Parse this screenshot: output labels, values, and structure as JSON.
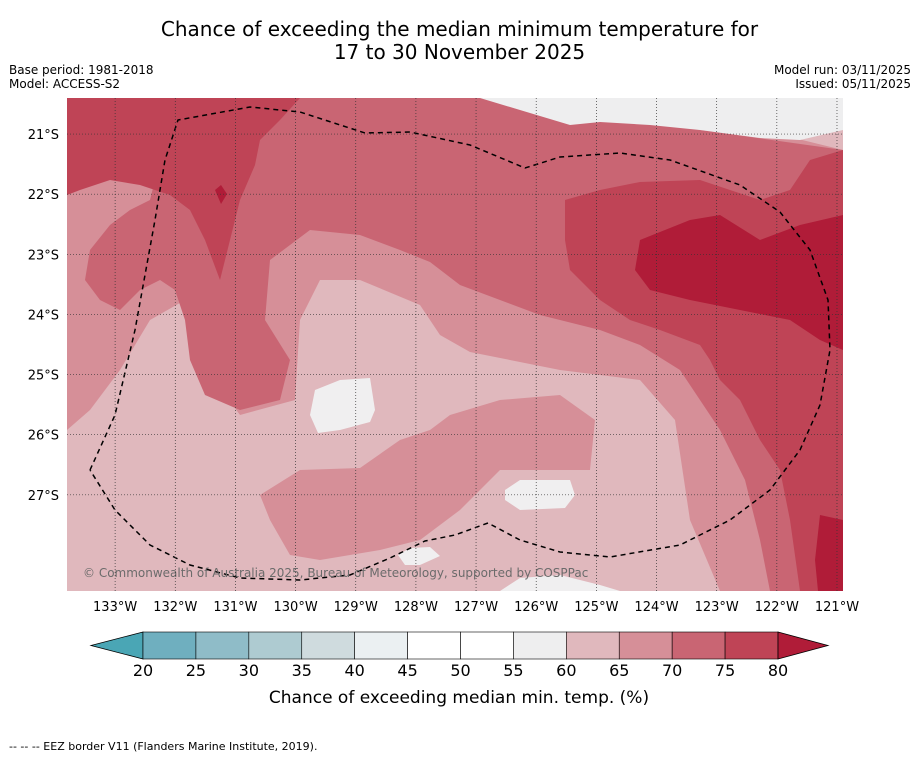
{
  "header": {
    "title_line1": "Chance of exceeding the median minimum temperature for",
    "title_line2": "17 to 30 November 2025",
    "base_period": "Base period: 1981-2018",
    "model": "Model: ACCESS-S2",
    "model_run": "Model run: 03/11/2025",
    "issued": "Issued: 05/11/2025"
  },
  "chart_data": {
    "type": "heatmap",
    "title": "Chance of exceeding the median minimum temperature for 17 to 30 November 2025",
    "x_ticks": [
      "133°W",
      "132°W",
      "131°W",
      "130°W",
      "129°W",
      "128°W",
      "127°W",
      "126°W",
      "125°W",
      "124°W",
      "123°W",
      "122°W",
      "121°W"
    ],
    "x_values": [
      -133,
      -132,
      -131,
      -130,
      -129,
      -128,
      -127,
      -126,
      -125,
      -124,
      -123,
      -122,
      -121
    ],
    "y_ticks": [
      "21°S",
      "22°S",
      "23°S",
      "24°S",
      "25°S",
      "26°S",
      "27°S"
    ],
    "y_values": [
      -21,
      -22,
      -23,
      -24,
      -25,
      -26,
      -27
    ],
    "xlim": [
      -133.8,
      -120.9
    ],
    "ylim": [
      -28.6,
      -20.4
    ],
    "colorbar": {
      "label": "Chance of exceeding median min. temp. (%)",
      "tick_labels": [
        "20",
        "25",
        "30",
        "35",
        "40",
        "45",
        "50",
        "55",
        "60",
        "65",
        "70",
        "75",
        "80"
      ],
      "levels": [
        20,
        25,
        30,
        35,
        40,
        45,
        50,
        55,
        60,
        65,
        70,
        75,
        80
      ],
      "colors": [
        "#4aa6b5",
        "#6fafbf",
        "#8fbcc8",
        "#aecbd1",
        "#cfdbde",
        "#ebf0f2",
        "#ffffff",
        "#ffffff",
        "#eeeeef",
        "#e0b8bd",
        "#d68f98",
        "#c96573",
        "#bf4456",
        "#b01c38"
      ]
    },
    "regions": [
      {
        "name": "background-60-65",
        "value": 62
      },
      {
        "name": "region-65-70",
        "value": 67
      },
      {
        "name": "region-70-75",
        "value": 72
      },
      {
        "name": "region-75-80",
        "value": 77
      },
      {
        "name": "region-above-80",
        "value": 82
      },
      {
        "name": "region-55-60",
        "value": 57
      }
    ],
    "attribution": "© Commonwealth of Australia 2025, Bureau of Meteorology, supported by COSPPac"
  },
  "footer": {
    "legend_text": "-- -- -- EEZ border V11 (Flanders Marine Institute, 2019)."
  }
}
